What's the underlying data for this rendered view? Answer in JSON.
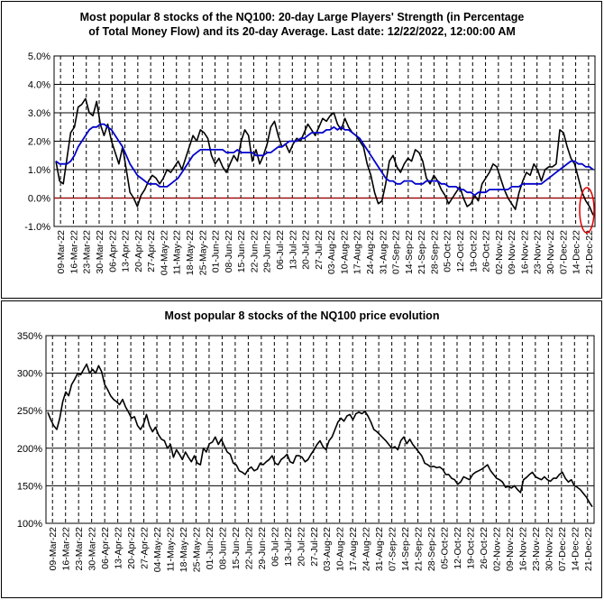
{
  "chart_data": [
    {
      "type": "line",
      "title_line1": "Most popular 8 stocks of the NQ100: 20-day Large Players' Strength (in Percentage",
      "title_line2": "of Total Money Flow) and its 20-day Average. Last date: 12/22/2022, 12:00:00 AM",
      "ylim": [
        -1,
        5
      ],
      "yticks": [
        -1,
        0,
        1,
        2,
        3,
        4,
        5
      ],
      "ytick_labels": [
        "-1.0%",
        "0.0%",
        "1.0%",
        "2.0%",
        "3.0%",
        "4.0%",
        "5.0%"
      ],
      "xtick_labels": [
        "09-Mar-22",
        "16-Mar-22",
        "23-Mar-22",
        "30-Mar-22",
        "06-Apr-22",
        "13-Apr-22",
        "20-Apr-22",
        "27-Apr-22",
        "04-May-22",
        "11-May-22",
        "18-May-22",
        "25-May-22",
        "01-Jun-22",
        "08-Jun-22",
        "15-Jun-22",
        "22-Jun-22",
        "29-Jun-22",
        "06-Jul-22",
        "13-Jul-22",
        "20-Jul-22",
        "27-Jul-22",
        "03-Aug-22",
        "10-Aug-22",
        "17-Aug-22",
        "24-Aug-22",
        "31-Aug-22",
        "07-Sep-22",
        "14-Sep-22",
        "21-Sep-22",
        "28-Sep-22",
        "05-Oct-22",
        "12-Oct-22",
        "19-Oct-22",
        "26-Oct-22",
        "02-Nov-22",
        "09-Nov-22",
        "16-Nov-22",
        "23-Nov-22",
        "30-Nov-22",
        "07-Dec-22",
        "14-Dec-22",
        "21-Dec-22"
      ],
      "grid": true,
      "reference_line": 0,
      "series": [
        {
          "color": "#000000",
          "values": [
            1.3,
            0.6,
            0.5,
            1.4,
            2.3,
            2.5,
            3.2,
            3.3,
            3.5,
            3.0,
            2.9,
            3.4,
            2.6,
            2.2,
            2.6,
            2.0,
            1.6,
            1.2,
            1.8,
            1.0,
            0.2,
            0.0,
            -0.3,
            0.1,
            0.3,
            0.6,
            0.8,
            0.7,
            0.5,
            0.7,
            1.0,
            0.9,
            1.1,
            1.3,
            1.0,
            1.4,
            1.8,
            2.2,
            2.0,
            2.4,
            2.3,
            2.1,
            1.5,
            1.2,
            1.4,
            1.1,
            0.9,
            1.2,
            1.5,
            1.3,
            2.0,
            2.4,
            2.2,
            1.3,
            1.7,
            1.2,
            1.5,
            1.9,
            2.5,
            2.7,
            2.2,
            1.8,
            1.9,
            1.6,
            1.9,
            2.1,
            2.0,
            2.3,
            2.6,
            2.4,
            2.2,
            2.5,
            2.8,
            2.7,
            2.9,
            3.0,
            2.6,
            2.4,
            2.8,
            2.5,
            2.3,
            2.2,
            2.0,
            1.8,
            1.2,
            0.8,
            0.2,
            -0.2,
            -0.1,
            0.5,
            1.3,
            1.5,
            1.1,
            0.9,
            1.2,
            1.4,
            1.3,
            1.7,
            1.6,
            1.3,
            0.7,
            0.5,
            0.8,
            0.6,
            0.3,
            0.1,
            -0.2,
            0.0,
            0.2,
            0.4,
            0.0,
            -0.3,
            -0.2,
            0.1,
            -0.1,
            0.5,
            0.7,
            0.9,
            1.2,
            1.1,
            0.7,
            0.3,
            0.0,
            -0.2,
            -0.4,
            0.2,
            0.6,
            0.9,
            0.8,
            1.2,
            1.0,
            0.6,
            1.0,
            1.1,
            1.1,
            1.2,
            2.4,
            2.3,
            1.8,
            1.4,
            1.2,
            0.7,
            0.2,
            -0.1,
            -0.3,
            -0.6
          ]
        },
        {
          "color": "#0000cc",
          "values": [
            1.3,
            1.2,
            1.2,
            1.2,
            1.3,
            1.5,
            1.8,
            2.0,
            2.2,
            2.4,
            2.5,
            2.5,
            2.6,
            2.6,
            2.5,
            2.4,
            2.2,
            2.0,
            1.8,
            1.5,
            1.2,
            1.0,
            0.8,
            0.7,
            0.6,
            0.5,
            0.5,
            0.5,
            0.4,
            0.4,
            0.4,
            0.5,
            0.6,
            0.7,
            0.9,
            1.1,
            1.3,
            1.5,
            1.6,
            1.7,
            1.7,
            1.7,
            1.7,
            1.7,
            1.7,
            1.7,
            1.6,
            1.6,
            1.6,
            1.7,
            1.6,
            1.6,
            1.6,
            1.6,
            1.5,
            1.5,
            1.5,
            1.6,
            1.6,
            1.7,
            1.8,
            1.8,
            1.9,
            2.0,
            2.0,
            2.0,
            2.1,
            2.1,
            2.2,
            2.3,
            2.3,
            2.3,
            2.3,
            2.4,
            2.4,
            2.5,
            2.4,
            2.5,
            2.4,
            2.4,
            2.3,
            2.2,
            2.1,
            1.9,
            1.7,
            1.5,
            1.3,
            1.1,
            0.9,
            0.7,
            0.6,
            0.6,
            0.5,
            0.5,
            0.6,
            0.6,
            0.6,
            0.5,
            0.5,
            0.5,
            0.6,
            0.6,
            0.6,
            0.6,
            0.5,
            0.5,
            0.4,
            0.4,
            0.4,
            0.3,
            0.3,
            0.2,
            0.2,
            0.1,
            0.2,
            0.2,
            0.2,
            0.3,
            0.3,
            0.3,
            0.3,
            0.3,
            0.3,
            0.4,
            0.4,
            0.4,
            0.5,
            0.5,
            0.5,
            0.5,
            0.5,
            0.5,
            0.6,
            0.7,
            0.8,
            0.9,
            1.0,
            1.1,
            1.2,
            1.3,
            1.3,
            1.2,
            1.2,
            1.1,
            1.1,
            1.0
          ]
        }
      ]
    },
    {
      "type": "line",
      "title": "Most popular 8 stocks of the NQ100 price evolution",
      "ylim": [
        100,
        350
      ],
      "yticks": [
        100,
        150,
        200,
        250,
        300,
        350
      ],
      "ytick_labels": [
        "100%",
        "150%",
        "200%",
        "250%",
        "300%",
        "350%"
      ],
      "xtick_labels": [
        "09-Mar-22",
        "16-Mar-22",
        "23-Mar-22",
        "30-Mar-22",
        "06-Apr-22",
        "13-Apr-22",
        "20-Apr-22",
        "27-Apr-22",
        "04-May-22",
        "11-May-22",
        "18-May-22",
        "25-May-22",
        "01-Jun-22",
        "08-Jun-22",
        "15-Jun-22",
        "22-Jun-22",
        "29-Jun-22",
        "06-Jul-22",
        "13-Jul-22",
        "20-Jul-22",
        "27-Jul-22",
        "03-Aug-22",
        "10-Aug-22",
        "17-Aug-22",
        "24-Aug-22",
        "31-Aug-22",
        "07-Sep-22",
        "14-Sep-22",
        "21-Sep-22",
        "28-Sep-22",
        "05-Oct-22",
        "12-Oct-22",
        "19-Oct-22",
        "26-Oct-22",
        "02-Nov-22",
        "09-Nov-22",
        "16-Nov-22",
        "23-Nov-22",
        "30-Nov-22",
        "07-Dec-22",
        "14-Dec-22",
        "21-Dec-22"
      ],
      "grid": true,
      "series": [
        {
          "color": "#000000",
          "values": [
            248,
            238,
            230,
            225,
            240,
            262,
            275,
            270,
            285,
            292,
            300,
            298,
            305,
            312,
            300,
            305,
            300,
            310,
            302,
            285,
            278,
            270,
            265,
            262,
            258,
            265,
            255,
            248,
            240,
            242,
            230,
            225,
            232,
            245,
            230,
            222,
            228,
            218,
            212,
            210,
            200,
            205,
            188,
            198,
            192,
            185,
            195,
            188,
            182,
            190,
            180,
            178,
            200,
            195,
            206,
            208,
            215,
            205,
            212,
            203,
            195,
            192,
            180,
            178,
            170,
            168,
            165,
            172,
            175,
            170,
            172,
            180,
            178,
            182,
            185,
            190,
            180,
            178,
            185,
            188,
            192,
            182,
            180,
            190,
            190,
            188,
            182,
            185,
            192,
            198,
            205,
            210,
            202,
            198,
            210,
            215,
            225,
            235,
            240,
            236,
            243,
            245,
            238,
            246,
            248,
            246,
            249,
            243,
            235,
            225,
            222,
            218,
            214,
            210,
            205,
            200,
            202,
            198,
            210,
            215,
            206,
            212,
            205,
            200,
            195,
            190,
            180,
            178,
            175,
            176,
            174,
            175,
            172,
            165,
            165,
            160,
            158,
            152,
            155,
            162,
            160,
            158,
            165,
            168,
            170,
            172,
            175,
            178,
            170,
            165,
            160,
            158,
            155,
            148,
            149,
            147,
            150,
            145,
            141,
            158,
            161,
            165,
            168,
            162,
            160,
            158,
            162,
            158,
            156,
            160,
            160,
            165,
            168,
            160,
            155,
            158,
            150,
            148,
            145,
            140,
            135,
            128,
            122
          ]
        }
      ]
    }
  ]
}
